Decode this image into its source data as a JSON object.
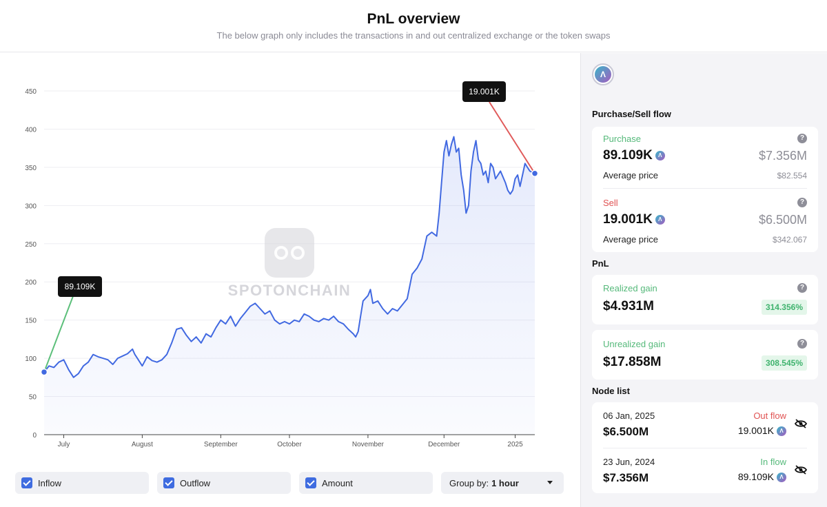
{
  "header": {
    "title": "PnL overview",
    "subtitle": "The below graph only includes the transactions in and out centralized exchange or the token swaps"
  },
  "chart_data": {
    "type": "area",
    "title": "",
    "xlabel": "",
    "ylabel": "",
    "ylim": [
      0,
      450
    ],
    "y_ticks": [
      "0",
      "50",
      "100",
      "150",
      "200",
      "250",
      "300",
      "350",
      "400",
      "450"
    ],
    "x_tick_labels": [
      "July",
      "August",
      "September",
      "October",
      "November",
      "December",
      "2025"
    ],
    "x_tick_positions": [
      0.04,
      0.2,
      0.36,
      0.5,
      0.66,
      0.815,
      0.96
    ],
    "series": [
      {
        "name": "",
        "color": "#4169e1",
        "points": [
          [
            0,
            82
          ],
          [
            0.01,
            90
          ],
          [
            0.02,
            88
          ],
          [
            0.03,
            95
          ],
          [
            0.04,
            98
          ],
          [
            0.05,
            85
          ],
          [
            0.06,
            75
          ],
          [
            0.07,
            80
          ],
          [
            0.08,
            90
          ],
          [
            0.09,
            95
          ],
          [
            0.1,
            105
          ],
          [
            0.11,
            102
          ],
          [
            0.12,
            100
          ],
          [
            0.13,
            98
          ],
          [
            0.14,
            92
          ],
          [
            0.15,
            100
          ],
          [
            0.16,
            103
          ],
          [
            0.17,
            106
          ],
          [
            0.18,
            112
          ],
          [
            0.185,
            105
          ],
          [
            0.19,
            100
          ],
          [
            0.2,
            90
          ],
          [
            0.21,
            102
          ],
          [
            0.22,
            97
          ],
          [
            0.23,
            95
          ],
          [
            0.24,
            98
          ],
          [
            0.25,
            105
          ],
          [
            0.26,
            120
          ],
          [
            0.27,
            138
          ],
          [
            0.28,
            140
          ],
          [
            0.29,
            130
          ],
          [
            0.3,
            122
          ],
          [
            0.31,
            128
          ],
          [
            0.32,
            120
          ],
          [
            0.33,
            132
          ],
          [
            0.34,
            128
          ],
          [
            0.35,
            140
          ],
          [
            0.36,
            150
          ],
          [
            0.37,
            145
          ],
          [
            0.38,
            155
          ],
          [
            0.39,
            142
          ],
          [
            0.4,
            152
          ],
          [
            0.41,
            160
          ],
          [
            0.42,
            168
          ],
          [
            0.43,
            172
          ],
          [
            0.44,
            165
          ],
          [
            0.45,
            158
          ],
          [
            0.46,
            162
          ],
          [
            0.47,
            150
          ],
          [
            0.48,
            145
          ],
          [
            0.49,
            148
          ],
          [
            0.5,
            145
          ],
          [
            0.51,
            150
          ],
          [
            0.52,
            148
          ],
          [
            0.53,
            158
          ],
          [
            0.54,
            155
          ],
          [
            0.55,
            150
          ],
          [
            0.56,
            148
          ],
          [
            0.57,
            152
          ],
          [
            0.58,
            150
          ],
          [
            0.59,
            155
          ],
          [
            0.6,
            148
          ],
          [
            0.61,
            145
          ],
          [
            0.62,
            138
          ],
          [
            0.63,
            132
          ],
          [
            0.635,
            128
          ],
          [
            0.64,
            135
          ],
          [
            0.645,
            155
          ],
          [
            0.65,
            175
          ],
          [
            0.66,
            182
          ],
          [
            0.665,
            190
          ],
          [
            0.67,
            172
          ],
          [
            0.68,
            175
          ],
          [
            0.69,
            165
          ],
          [
            0.7,
            158
          ],
          [
            0.71,
            165
          ],
          [
            0.72,
            162
          ],
          [
            0.73,
            170
          ],
          [
            0.74,
            178
          ],
          [
            0.75,
            210
          ],
          [
            0.76,
            218
          ],
          [
            0.77,
            230
          ],
          [
            0.78,
            260
          ],
          [
            0.79,
            265
          ],
          [
            0.8,
            260
          ],
          [
            0.805,
            290
          ],
          [
            0.81,
            330
          ],
          [
            0.815,
            370
          ],
          [
            0.82,
            385
          ],
          [
            0.825,
            365
          ],
          [
            0.83,
            380
          ],
          [
            0.835,
            390
          ],
          [
            0.84,
            370
          ],
          [
            0.845,
            375
          ],
          [
            0.85,
            340
          ],
          [
            0.855,
            320
          ],
          [
            0.86,
            290
          ],
          [
            0.865,
            300
          ],
          [
            0.87,
            345
          ],
          [
            0.875,
            370
          ],
          [
            0.88,
            385
          ],
          [
            0.885,
            360
          ],
          [
            0.89,
            355
          ],
          [
            0.895,
            340
          ],
          [
            0.9,
            345
          ],
          [
            0.905,
            330
          ],
          [
            0.91,
            355
          ],
          [
            0.915,
            350
          ],
          [
            0.92,
            335
          ],
          [
            0.93,
            345
          ],
          [
            0.94,
            330
          ],
          [
            0.945,
            320
          ],
          [
            0.95,
            315
          ],
          [
            0.955,
            320
          ],
          [
            0.96,
            335
          ],
          [
            0.965,
            340
          ],
          [
            0.97,
            325
          ],
          [
            0.975,
            340
          ],
          [
            0.98,
            355
          ],
          [
            0.985,
            350
          ],
          [
            0.99,
            345
          ],
          [
            1.0,
            342
          ]
        ]
      }
    ],
    "annotations": [
      {
        "label": "89.109K",
        "color": "#5cbf7a"
      },
      {
        "label": "19.001K",
        "color": "#e05a5a"
      }
    ],
    "watermark": "SPOTONCHAIN"
  },
  "controls": {
    "inflow": "Inflow",
    "outflow": "Outflow",
    "amount": "Amount",
    "group_by_label": "Group by:",
    "group_by_value": "1 hour"
  },
  "sidebar": {
    "token_icon": "aave-logo",
    "flow_title": "Purchase/Sell flow",
    "purchase": {
      "label": "Purchase",
      "qty": "89.109K",
      "usd": "$7.356M",
      "avg_label": "Average price",
      "avg_value": "$82.554"
    },
    "sell": {
      "label": "Sell",
      "qty": "19.001K",
      "usd": "$6.500M",
      "avg_label": "Average price",
      "avg_value": "$342.067"
    },
    "pnl_title": "PnL",
    "realized": {
      "label": "Realized gain",
      "value": "$4.931M",
      "pct": "314.356%"
    },
    "unrealized": {
      "label": "Unrealized gain",
      "value": "$17.858M",
      "pct": "308.545%"
    },
    "node_title": "Node list",
    "nodes": [
      {
        "date": "06 Jan, 2025",
        "amount": "$6.500M",
        "flow": "Out flow",
        "flow_color": "#e05252",
        "qty": "19.001K"
      },
      {
        "date": "23 Jun, 2024",
        "amount": "$7.356M",
        "flow": "In flow",
        "flow_color": "#55b97a",
        "qty": "89.109K"
      }
    ]
  }
}
